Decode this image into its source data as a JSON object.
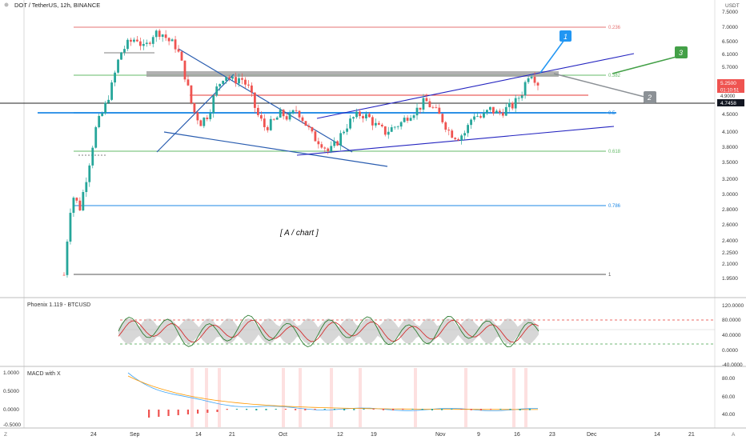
{
  "header": {
    "symbol": "DOT / TetherUS, 12h, BINANCE",
    "currency": "USDT"
  },
  "main_axis_ticks": [
    "7.5000",
    "7.0000",
    "6.5000",
    "6.1000",
    "5.7000",
    "5.2500",
    "4.9000",
    "4.5000",
    "4.1000",
    "3.8000",
    "3.5000",
    "3.2000",
    "3.0000",
    "2.8000",
    "2.6000",
    "2.4000",
    "2.2500",
    "2.1000",
    "1.9500"
  ],
  "price_badges": {
    "current": "5.2500",
    "countdown": "01:10:51",
    "sub": "4.9000",
    "level": "4.7458"
  },
  "fib_labels": [
    "0.236",
    "0.382",
    "0.5",
    "0.618",
    "0.786",
    "1"
  ],
  "callouts": [
    "1",
    "2",
    "3"
  ],
  "annotation": "[ A / chart ]",
  "x_axis": [
    "24",
    "Sep",
    "14",
    "21",
    "Oct",
    "12",
    "19",
    "Nov",
    "9",
    "16",
    "23",
    "Dec",
    "14",
    "21"
  ],
  "x_axis_left": "Z",
  "x_axis_right": "A",
  "phoenix": {
    "title": "Phoenix 1.119 - BTCUSD",
    "ticks": [
      "120.0000",
      "80.0000",
      "40.0000",
      "0.0000",
      "-40.0000"
    ]
  },
  "macd": {
    "title": "MACD with X",
    "ticks_left": [
      "1.0000",
      "0.5000",
      "0.0000",
      "-0.5000"
    ],
    "ticks_right": [
      "80.00",
      "60.00",
      "40.00"
    ]
  },
  "colors": {
    "up": "#26a69a",
    "down": "#ef5350",
    "trend_blue": "#2a5db0",
    "fib_red": "#e57373",
    "fib_green": "#66bb6a",
    "fib_blue": "#1e88e5",
    "callout_1": "#2196f3",
    "callout_2": "#8c9196",
    "callout_3": "#43a047"
  },
  "chart_data": {
    "type": "candlestick",
    "title": "DOT / TetherUS, 12h, BINANCE",
    "y_range": [
      1.95,
      7.5
    ],
    "y_scale": "log",
    "price_series": [
      2.0,
      3.0,
      2.8,
      3.4,
      4.2,
      4.6,
      5.2,
      6.1,
      6.4,
      6.6,
      6.2,
      6.7,
      6.8,
      6.5,
      6.3,
      5.5,
      4.6,
      4.3,
      4.5,
      5.1,
      5.5,
      5.3,
      5.4,
      5.1,
      4.5,
      4.2,
      4.3,
      4.5,
      4.4,
      4.6,
      4.3,
      4.0,
      3.9,
      3.7,
      3.9,
      4.2,
      4.4,
      4.5,
      4.4,
      4.2,
      4.1,
      4.2,
      4.3,
      4.5,
      4.6,
      4.8,
      4.6,
      4.4,
      4.1,
      4.0,
      4.1,
      4.5,
      4.4,
      4.6,
      4.5,
      4.6,
      4.7,
      5.0,
      5.6,
      5.25
    ],
    "fib_levels": [
      {
        "label": "0.236",
        "price": 6.95
      },
      {
        "label": "0.382",
        "price": 5.5
      },
      {
        "label": "0.5",
        "price": 4.52
      },
      {
        "label": "0.618",
        "price": 3.72
      },
      {
        "label": "0.786",
        "price": 2.83
      },
      {
        "label": "1",
        "price": 1.97
      }
    ]
  }
}
